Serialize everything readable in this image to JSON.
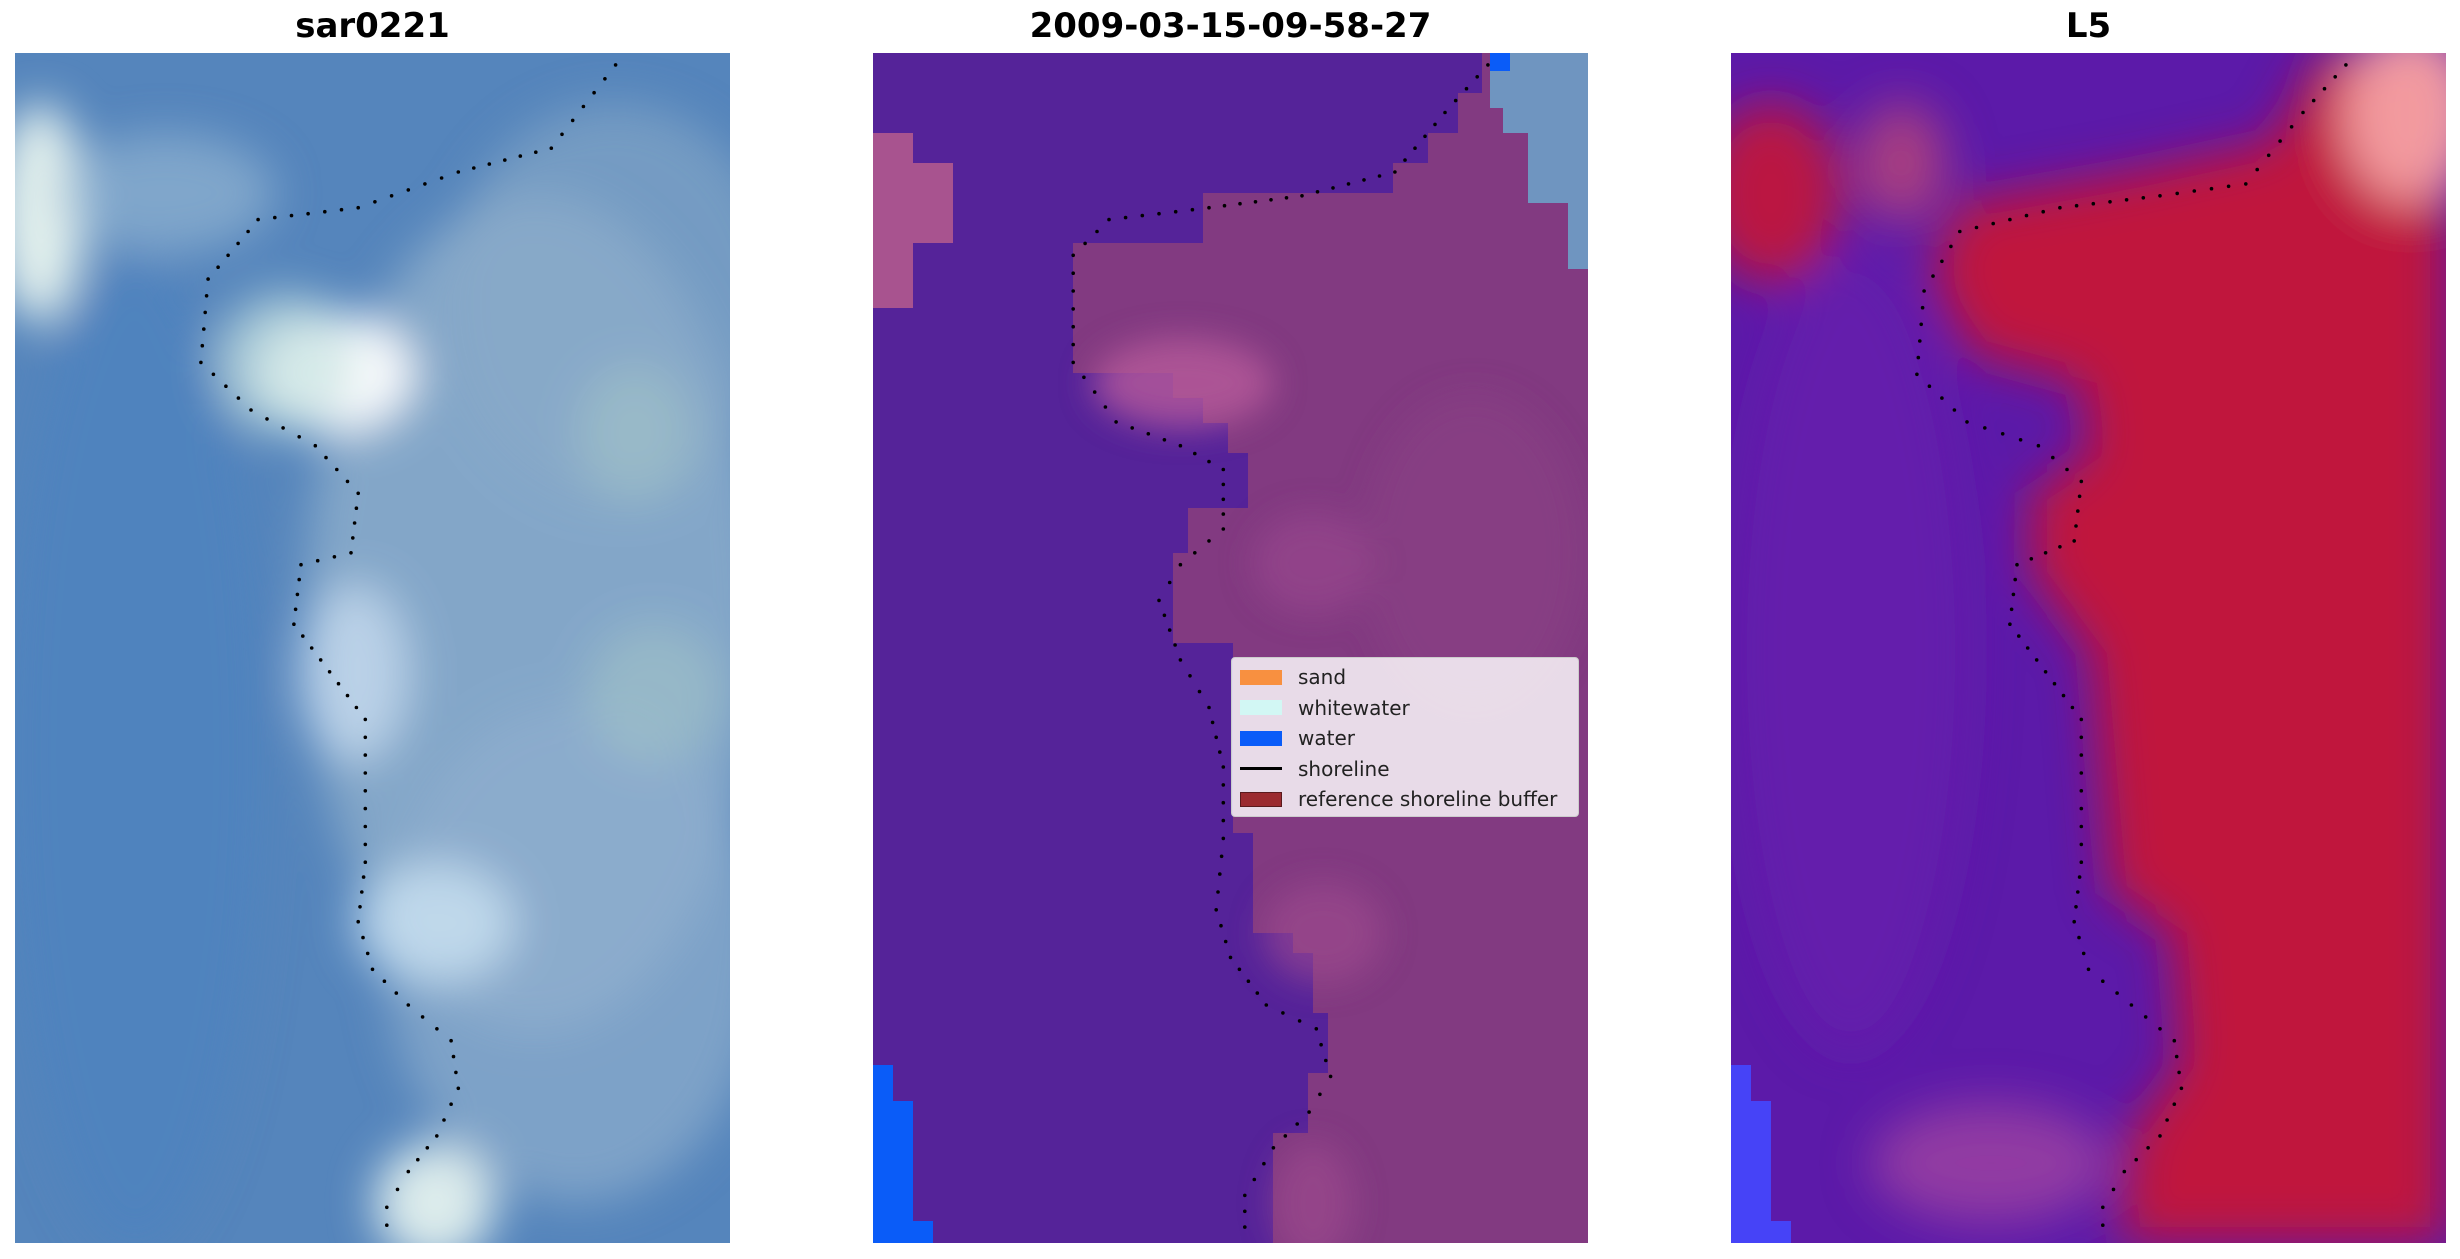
{
  "chart_data": [
    {
      "type": "image",
      "title": "sar0221",
      "shoreline_points": [
        [
          0.84,
          0.01
        ],
        [
          0.75,
          0.08
        ],
        [
          0.62,
          0.1
        ],
        [
          0.48,
          0.13
        ],
        [
          0.34,
          0.14
        ],
        [
          0.27,
          0.19
        ],
        [
          0.26,
          0.26
        ],
        [
          0.33,
          0.3
        ],
        [
          0.42,
          0.33
        ],
        [
          0.48,
          0.37
        ],
        [
          0.47,
          0.42
        ],
        [
          0.4,
          0.43
        ],
        [
          0.39,
          0.48
        ],
        [
          0.44,
          0.52
        ],
        [
          0.49,
          0.56
        ],
        [
          0.49,
          0.62
        ],
        [
          0.49,
          0.68
        ],
        [
          0.48,
          0.73
        ],
        [
          0.5,
          0.77
        ],
        [
          0.55,
          0.8
        ],
        [
          0.61,
          0.83
        ],
        [
          0.62,
          0.87
        ],
        [
          0.59,
          0.91
        ],
        [
          0.55,
          0.94
        ],
        [
          0.52,
          0.97
        ],
        [
          0.52,
          1.0
        ]
      ]
    },
    {
      "type": "image",
      "title": "2009-03-15-09-58-27",
      "shoreline_points": [
        [
          0.86,
          0.01
        ],
        [
          0.8,
          0.05
        ],
        [
          0.73,
          0.1
        ],
        [
          0.6,
          0.12
        ],
        [
          0.47,
          0.13
        ],
        [
          0.33,
          0.14
        ],
        [
          0.28,
          0.17
        ],
        [
          0.28,
          0.26
        ],
        [
          0.34,
          0.31
        ],
        [
          0.43,
          0.33
        ],
        [
          0.49,
          0.35
        ],
        [
          0.49,
          0.4
        ],
        [
          0.43,
          0.43
        ],
        [
          0.4,
          0.46
        ],
        [
          0.43,
          0.51
        ],
        [
          0.47,
          0.55
        ],
        [
          0.49,
          0.6
        ],
        [
          0.49,
          0.66
        ],
        [
          0.48,
          0.72
        ],
        [
          0.5,
          0.76
        ],
        [
          0.55,
          0.8
        ],
        [
          0.62,
          0.82
        ],
        [
          0.64,
          0.86
        ],
        [
          0.61,
          0.89
        ],
        [
          0.56,
          0.92
        ],
        [
          0.52,
          0.96
        ],
        [
          0.52,
          1.0
        ]
      ],
      "legend": [
        {
          "label": "sand",
          "color": "#f89040",
          "kind": "patch"
        },
        {
          "label": "whitewater",
          "color": "#d2f7f4",
          "kind": "patch"
        },
        {
          "label": "water",
          "color": "#0a5cf8",
          "kind": "patch"
        },
        {
          "label": "shoreline",
          "color": "#000000",
          "kind": "line"
        },
        {
          "label": "reference shoreline buffer",
          "color": "#9b2b30",
          "kind": "patch"
        }
      ]
    },
    {
      "type": "image",
      "title": "L5",
      "shoreline_points": [
        [
          0.86,
          0.01
        ],
        [
          0.8,
          0.05
        ],
        [
          0.72,
          0.11
        ],
        [
          0.6,
          0.12
        ],
        [
          0.46,
          0.13
        ],
        [
          0.32,
          0.15
        ],
        [
          0.27,
          0.2
        ],
        [
          0.26,
          0.27
        ],
        [
          0.33,
          0.31
        ],
        [
          0.43,
          0.33
        ],
        [
          0.49,
          0.36
        ],
        [
          0.48,
          0.41
        ],
        [
          0.4,
          0.43
        ],
        [
          0.39,
          0.48
        ],
        [
          0.44,
          0.52
        ],
        [
          0.49,
          0.56
        ],
        [
          0.49,
          0.62
        ],
        [
          0.49,
          0.68
        ],
        [
          0.48,
          0.73
        ],
        [
          0.5,
          0.77
        ],
        [
          0.56,
          0.8
        ],
        [
          0.62,
          0.83
        ],
        [
          0.63,
          0.87
        ],
        [
          0.6,
          0.91
        ],
        [
          0.55,
          0.94
        ],
        [
          0.52,
          0.97
        ],
        [
          0.52,
          1.0
        ]
      ]
    }
  ]
}
